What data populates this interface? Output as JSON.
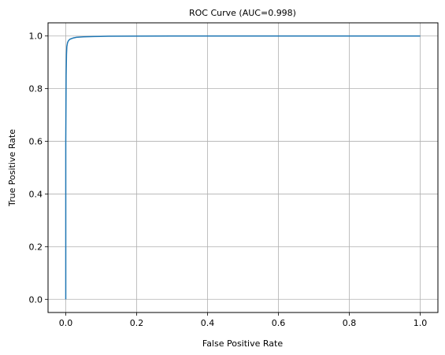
{
  "chart_data": {
    "type": "line",
    "title": "ROC Curve (AUC=0.998)",
    "xlabel": "False Positive Rate",
    "ylabel": "True Positive Rate",
    "xlim": [
      -0.05,
      1.05
    ],
    "ylim": [
      -0.05,
      1.05
    ],
    "x_ticks": [
      "0.0",
      "0.2",
      "0.4",
      "0.6",
      "0.8",
      "1.0"
    ],
    "y_ticks": [
      "0.0",
      "0.2",
      "0.4",
      "0.6",
      "0.8",
      "1.0"
    ],
    "grid": true,
    "legend": "none",
    "series": [
      {
        "color": "#1f77b4",
        "x": [
          0.0,
          0.0,
          0.001,
          0.002,
          0.003,
          0.005,
          0.008,
          0.012,
          0.02,
          0.03,
          0.05,
          0.08,
          0.12,
          0.2,
          0.3,
          0.5,
          0.7,
          1.0
        ],
        "y": [
          0.0,
          0.6,
          0.85,
          0.93,
          0.96,
          0.975,
          0.983,
          0.988,
          0.992,
          0.995,
          0.997,
          0.998,
          0.999,
          0.9995,
          1.0,
          1.0,
          1.0,
          1.0
        ]
      }
    ]
  }
}
